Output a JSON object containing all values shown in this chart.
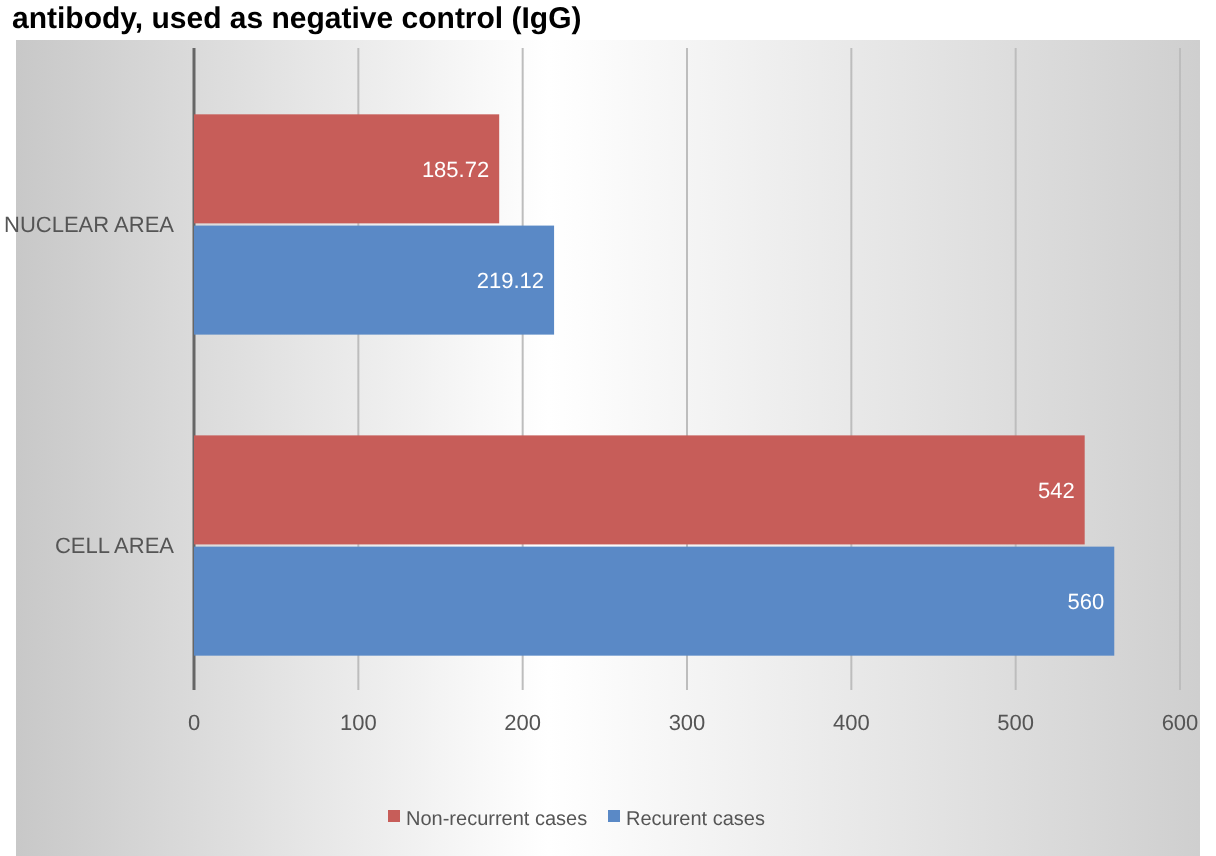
{
  "chart_data": {
    "type": "bar",
    "orientation": "horizontal",
    "title": "antibody, used as negative control (IgG)",
    "categories": [
      "NUCLEAR AREA",
      "CELL AREA"
    ],
    "series": [
      {
        "name": "Non-recurrent cases",
        "color": "#c75d59",
        "values": [
          185.72,
          542
        ]
      },
      {
        "name": "Recurent cases",
        "color": "#5a89c6",
        "values": [
          219.12,
          560
        ]
      }
    ],
    "xlim": [
      0,
      600
    ],
    "xticks": [
      0,
      100,
      200,
      300,
      400,
      500,
      600
    ],
    "grid": "x",
    "legend": "bottom",
    "data_labels": true
  }
}
